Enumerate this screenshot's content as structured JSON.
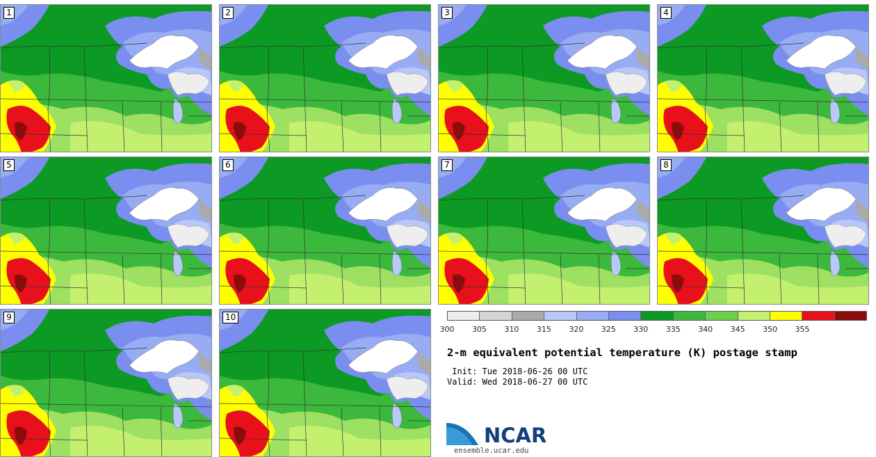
{
  "panels": [
    {
      "label": "1"
    },
    {
      "label": "2"
    },
    {
      "label": "3"
    },
    {
      "label": "4"
    },
    {
      "label": "5"
    },
    {
      "label": "6"
    },
    {
      "label": "7"
    },
    {
      "label": "8"
    },
    {
      "label": "9"
    },
    {
      "label": "10"
    }
  ],
  "colorbar": {
    "ticks": [
      "300",
      "305",
      "310",
      "315",
      "320",
      "325",
      "330",
      "335",
      "340",
      "345",
      "350",
      "355"
    ],
    "colors": [
      "#eeeeee",
      "#d4d4d4",
      "#aaaaaa",
      "#b8c8f8",
      "#98acf4",
      "#7a8ef0",
      "#0c9a24",
      "#3cb83c",
      "#6cd04c",
      "#c4f070",
      "#ffff00",
      "#e8101a",
      "#8c0c0c"
    ]
  },
  "title": "2-m equivalent potential temperature (K) postage stamp",
  "init": " Init: Tue 2018-06-26 00 UTC",
  "valid": "Valid: Wed 2018-06-27 00 UTC",
  "logo": {
    "text": "NCAR",
    "url": "ensemble.ucar.edu"
  }
}
